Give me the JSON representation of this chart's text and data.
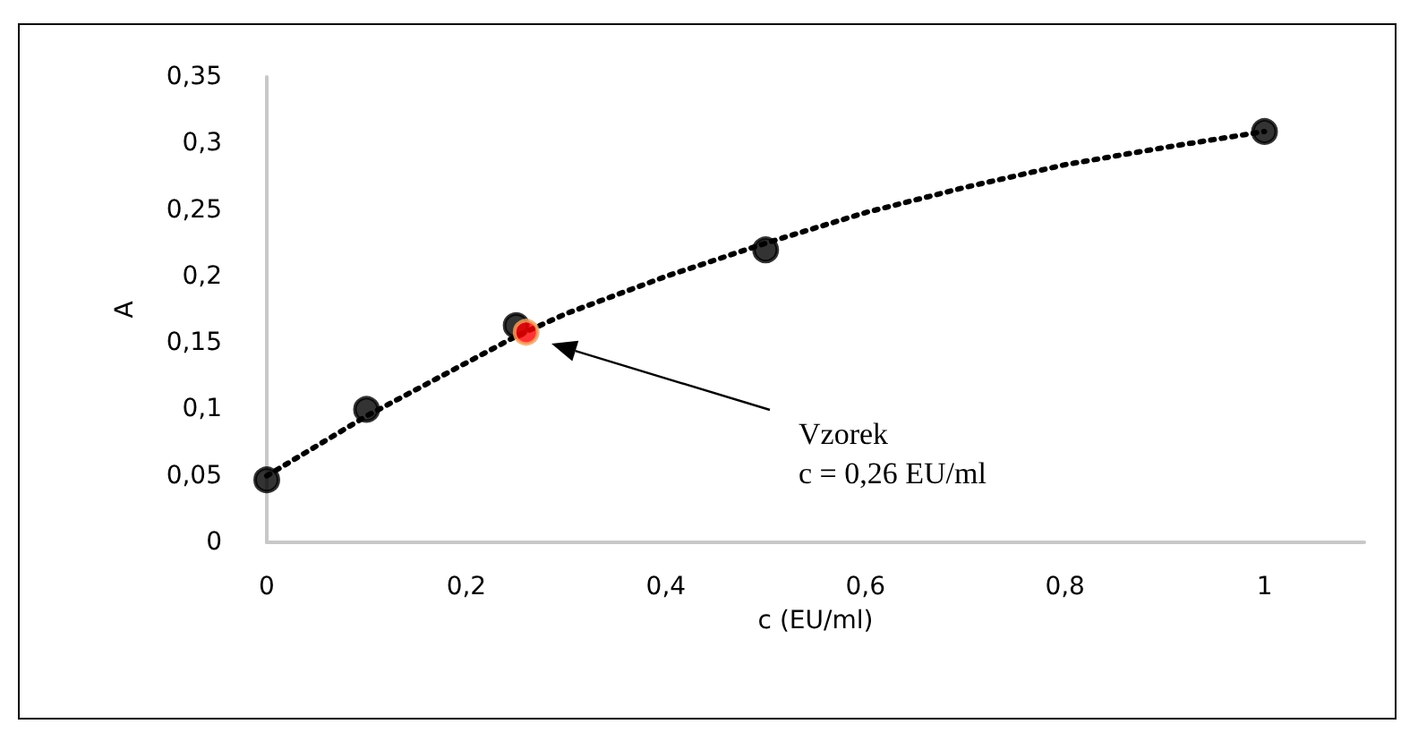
{
  "chart_data": {
    "type": "scatter",
    "xlabel": "c (EU/ml)",
    "ylabel": "A",
    "xlim": [
      0,
      1.1
    ],
    "xticks": [
      0,
      {
        "value": 0.2,
        "label": "0,2"
      },
      {
        "value": 0.4,
        "label": "0,4"
      },
      {
        "value": 0.6,
        "label": "0,6"
      },
      {
        "value": 0.8,
        "label": "0,8"
      },
      1
    ],
    "ylim": [
      0,
      0.35
    ],
    "yticks": [
      0,
      {
        "value": 0.05,
        "label": "0,05"
      },
      {
        "value": 0.1,
        "label": "0,1"
      },
      {
        "value": 0.15,
        "label": "0,15"
      },
      {
        "value": 0.2,
        "label": "0,2"
      },
      {
        "value": 0.25,
        "label": "0,25"
      },
      {
        "value": 0.3,
        "label": "0,3"
      },
      {
        "value": 0.35,
        "label": "0,35"
      }
    ],
    "grid": false,
    "series": [
      {
        "type": "line",
        "color": "#000000",
        "line_style": "dotted",
        "marker": "none",
        "x": [
          0,
          0.1,
          0.2,
          0.25,
          0.3,
          0.4,
          0.5,
          0.6,
          0.7,
          0.8,
          0.9,
          1
        ],
        "values": [
          0.05,
          0.095,
          0.135,
          0.155,
          0.172,
          0.2,
          0.225,
          0.248,
          0.267,
          0.284,
          0.297,
          0.309
        ]
      },
      {
        "color": "#000000",
        "marker": "circle",
        "x": [
          0,
          0.1,
          0.25,
          0.5,
          1
        ],
        "values": [
          0.047,
          0.1,
          0.163,
          0.22,
          0.309
        ]
      },
      {
        "color": "#ff0000",
        "marker": "circle",
        "x": [
          0.26
        ],
        "values": [
          0.158
        ]
      }
    ],
    "annotations": [
      "Vzorek\nc = 0,26 EU/ml"
    ]
  }
}
